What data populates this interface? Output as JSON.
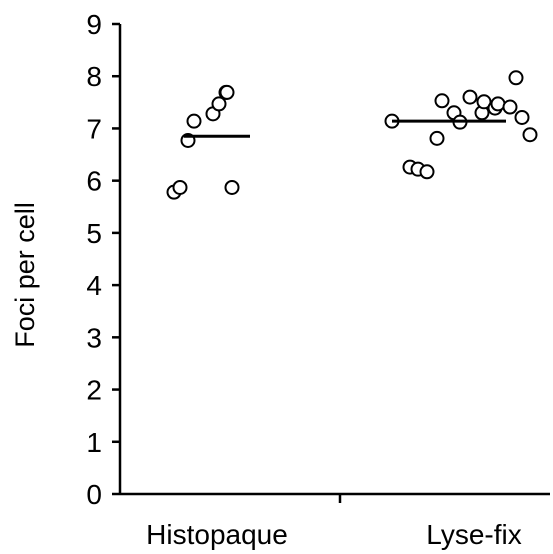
{
  "chart_data": {
    "type": "scatter",
    "ylabel": "Foci per cell",
    "ylim": [
      0,
      9
    ],
    "yticks": [
      0,
      1,
      2,
      3,
      4,
      5,
      6,
      7,
      8,
      9
    ],
    "categories": [
      "Histopaque",
      "Lyse-fix"
    ],
    "grid": false,
    "series": [
      {
        "category": "Histopaque",
        "mean": 6.85,
        "points": [
          5.78,
          5.87,
          6.77,
          7.14,
          7.28,
          7.47,
          7.69,
          7.69,
          5.87
        ]
      },
      {
        "category": "Lyse-fix",
        "mean": 7.14,
        "points": [
          7.14,
          6.26,
          6.22,
          6.17,
          6.81,
          7.53,
          7.3,
          7.12,
          7.6,
          7.3,
          7.51,
          7.39,
          7.47,
          7.41,
          7.97,
          7.21,
          6.88
        ]
      }
    ],
    "colors": {
      "marker_stroke": "#000000",
      "marker_fill": "#ffffff",
      "axis": "#000000"
    }
  }
}
